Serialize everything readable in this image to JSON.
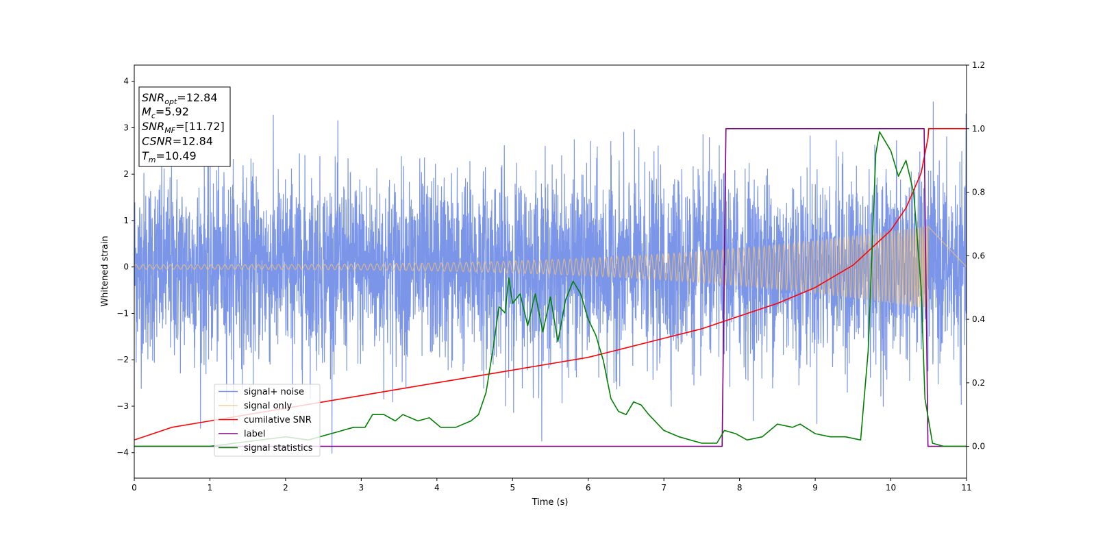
{
  "chart_data": {
    "type": "line",
    "xlabel": "Time (s)",
    "ylabel_left": "Whitened strain",
    "ylabel_right": "",
    "xlim": [
      0,
      11
    ],
    "ylim_left": [
      -4.55,
      4.35
    ],
    "ylim_right": [
      -0.1,
      1.2
    ],
    "x_ticks": [
      0,
      1,
      2,
      3,
      4,
      5,
      6,
      7,
      8,
      9,
      10,
      11
    ],
    "y_ticks_left": [
      -4,
      -3,
      -2,
      -1,
      0,
      1,
      2,
      3,
      4
    ],
    "y_ticks_right": [
      0.0,
      0.2,
      0.4,
      0.6,
      0.8,
      1.0,
      1.2
    ],
    "grid": false,
    "legend_position": "lower-left",
    "annotation": {
      "lines": [
        {
          "base": "SNR",
          "sub": "opt",
          "value": "=12.84"
        },
        {
          "base": "M",
          "sub": "c",
          "value": "=5.92"
        },
        {
          "base": "SNR",
          "sub": "MF",
          "value": "=[11.72]"
        },
        {
          "base": "CSNR",
          "sub": "",
          "value": "=12.84"
        },
        {
          "base": "T",
          "sub": "m",
          "value": "=10.49"
        }
      ]
    },
    "series": [
      {
        "name": "signal+ noise",
        "axis": "left",
        "color": "#7893e8",
        "kind": "noise",
        "noise_std": 1.0,
        "x_range": [
          0,
          11
        ],
        "y_min": -4.15,
        "y_max": 3.95
      },
      {
        "name": "signal only",
        "axis": "left",
        "color": "#f5c16c",
        "kind": "chirp",
        "x_range": [
          0,
          10.49
        ],
        "amplitude_start": 0.05,
        "amplitude_end": 0.9
      },
      {
        "name": "cumilative SNR",
        "axis": "right",
        "color": "#ff0000",
        "x": [
          0,
          0.5,
          1,
          1.5,
          2,
          2.5,
          3,
          3.5,
          4,
          4.5,
          5,
          5.5,
          6,
          6.5,
          7,
          7.5,
          8,
          8.5,
          9,
          9.5,
          10,
          10.2,
          10.4,
          10.49,
          10.5,
          11
        ],
        "y": [
          0.02,
          0.06,
          0.08,
          0.1,
          0.12,
          0.14,
          0.16,
          0.18,
          0.2,
          0.22,
          0.24,
          0.26,
          0.28,
          0.31,
          0.34,
          0.37,
          0.41,
          0.45,
          0.5,
          0.57,
          0.68,
          0.75,
          0.86,
          0.97,
          1.0,
          1.0
        ]
      },
      {
        "name": "label",
        "axis": "right",
        "color": "#800080",
        "x": [
          0,
          7.77,
          7.82,
          10.44,
          10.49,
          11
        ],
        "y": [
          0.0,
          0.0,
          1.0,
          1.0,
          0.0,
          0.0
        ]
      },
      {
        "name": "signal statistics",
        "axis": "right",
        "color": "#008000",
        "x": [
          0,
          1,
          2,
          2.3,
          2.6,
          2.9,
          3.05,
          3.15,
          3.3,
          3.45,
          3.55,
          3.75,
          3.9,
          4.05,
          4.25,
          4.45,
          4.55,
          4.65,
          4.75,
          4.82,
          4.9,
          4.95,
          5.0,
          5.1,
          5.2,
          5.3,
          5.4,
          5.5,
          5.6,
          5.7,
          5.8,
          5.9,
          6.0,
          6.1,
          6.2,
          6.3,
          6.4,
          6.5,
          6.6,
          6.7,
          6.8,
          7.0,
          7.2,
          7.5,
          7.7,
          7.8,
          7.95,
          8.1,
          8.3,
          8.5,
          8.7,
          8.8,
          9.0,
          9.2,
          9.4,
          9.6,
          9.7,
          9.8,
          9.85,
          9.9,
          10.0,
          10.1,
          10.2,
          10.3,
          10.4,
          10.45,
          10.55,
          10.7,
          11
        ],
        "y": [
          0.0,
          0.0,
          0.03,
          0.02,
          0.04,
          0.06,
          0.06,
          0.1,
          0.1,
          0.08,
          0.1,
          0.08,
          0.09,
          0.06,
          0.06,
          0.08,
          0.1,
          0.17,
          0.32,
          0.44,
          0.42,
          0.53,
          0.45,
          0.48,
          0.38,
          0.48,
          0.36,
          0.47,
          0.33,
          0.46,
          0.52,
          0.48,
          0.4,
          0.35,
          0.27,
          0.15,
          0.11,
          0.1,
          0.14,
          0.13,
          0.1,
          0.05,
          0.03,
          0.01,
          0.01,
          0.05,
          0.04,
          0.02,
          0.03,
          0.07,
          0.06,
          0.07,
          0.04,
          0.03,
          0.03,
          0.02,
          0.3,
          0.92,
          0.99,
          0.97,
          0.93,
          0.85,
          0.9,
          0.8,
          0.5,
          0.15,
          0.01,
          0.0,
          0.0
        ]
      }
    ]
  }
}
